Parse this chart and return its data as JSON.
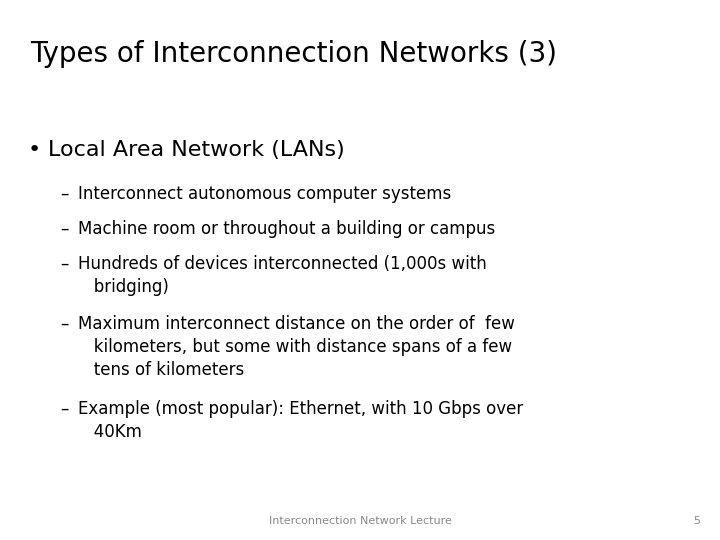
{
  "title": "Types of Interconnection Networks (3)",
  "background_color": "#ffffff",
  "title_color": "#000000",
  "title_fontsize": 20,
  "bullet_text": "Local Area Network (LANs)",
  "bullet_fontsize": 16,
  "bullet_color": "#000000",
  "sub_items": [
    "Interconnect autonomous computer systems",
    "Machine room or throughout a building or campus",
    "Hundreds of devices interconnected (1,000s with\n   bridging)",
    "Maximum interconnect distance on the order of  few\n   kilometers, but some with distance spans of a few\n   tens of kilometers",
    "Example (most popular): Ethernet, with 10 Gbps over\n   40Km"
  ],
  "sub_fontsize": 12,
  "sub_color": "#000000",
  "footer_text": "Interconnection Network Lecture",
  "footer_number": "5",
  "footer_fontsize": 8,
  "footer_color": "#888888"
}
